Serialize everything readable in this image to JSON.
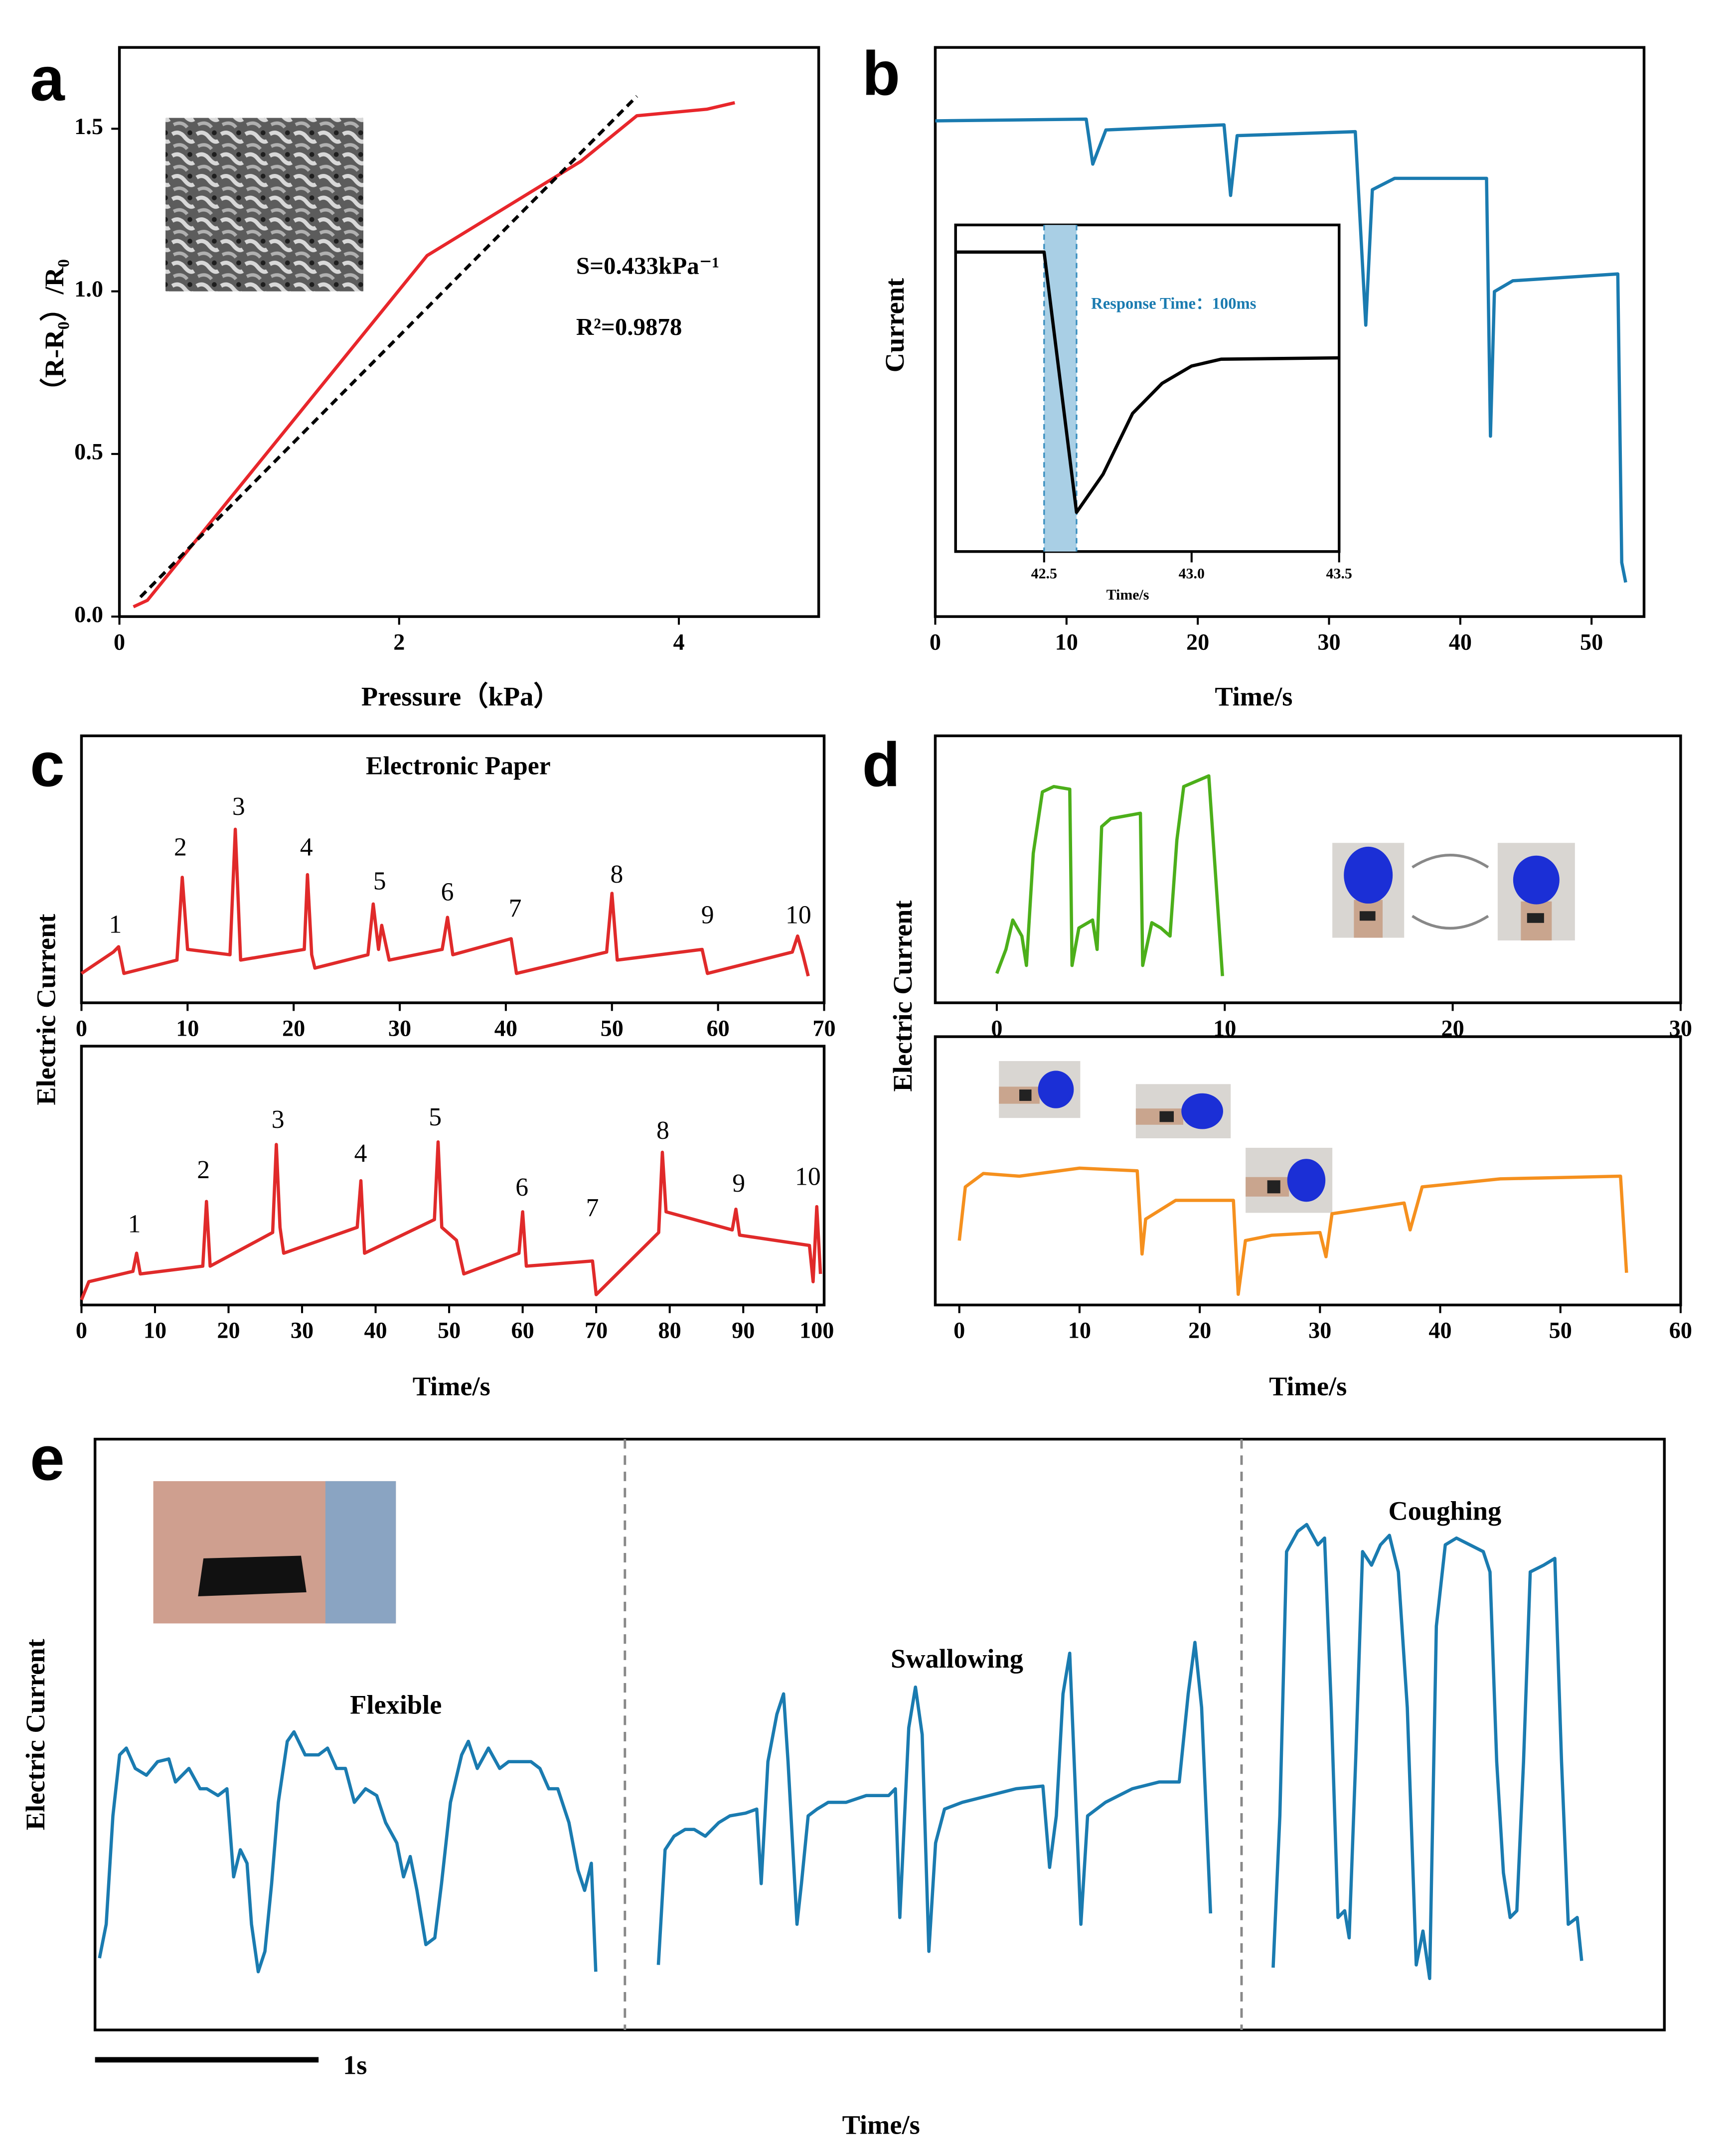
{
  "chart_data": [
    {
      "type": "line",
      "panel": "a",
      "xlabel": "Pressure（kPa）",
      "ylabel": "（R-R₀）/R₀",
      "xlim": [
        0,
        5
      ],
      "ylim": [
        0,
        1.75
      ],
      "xticks": [
        0,
        2,
        4
      ],
      "yticks": [
        {
          "value": 0,
          "label": "0.0"
        },
        0.5,
        {
          "value": 1,
          "label": "1.0"
        },
        1.5
      ],
      "series": [
        {
          "color": "#e8262b",
          "line_style": "solid",
          "x": [
            0.1,
            0.2,
            2.2,
            3.3,
            3.7,
            4.2,
            4.4
          ],
          "values": [
            0.03,
            0.05,
            1.11,
            1.4,
            1.54,
            1.56,
            1.58
          ]
        },
        {
          "color": "#000000",
          "line_style": "dashed",
          "x": [
            0.15,
            3.7
          ],
          "values": [
            0.06,
            1.6
          ]
        }
      ],
      "annotations": [
        "S=0.433kPa⁻¹",
        "R²=0.9878"
      ]
    },
    {
      "type": "line",
      "panel": "b",
      "xlabel": "Time/s",
      "ylabel": "Current",
      "xlim": [
        0,
        54
      ],
      "ylim": [
        0,
        1
      ],
      "xticks": [
        0,
        10,
        20,
        30,
        40,
        50
      ],
      "series": [
        {
          "color": "#1a7bb0",
          "line_style": "solid",
          "x": [
            0,
            11.5,
            12,
            13,
            22,
            22.5,
            23,
            32,
            32.8,
            33.3,
            35,
            42,
            42.3,
            42.6,
            44,
            52,
            52.3,
            52.6
          ],
          "values": [
            0.871,
            0.874,
            0.795,
            0.855,
            0.864,
            0.74,
            0.845,
            0.852,
            0.512,
            0.75,
            0.77,
            0.77,
            0.317,
            0.571,
            0.59,
            0.602,
            0.095,
            0.06
          ]
        }
      ]
    },
    {
      "type": "line",
      "xlabel": "Time/s",
      "xlim": [
        42.2,
        43.5
      ],
      "ylim": [
        0,
        1
      ],
      "xticks": [
        42.5,
        {
          "value": 43,
          "label": "43.0"
        },
        43.5
      ],
      "span": [
        42.5,
        42.61
      ],
      "series": [
        {
          "color": "#000000",
          "line_style": "solid",
          "x": [
            42.2,
            42.5,
            42.61,
            42.7,
            42.8,
            42.9,
            43.0,
            43.1,
            43.5
          ],
          "values": [
            0.917,
            0.917,
            0.12,
            0.237,
            0.423,
            0.515,
            0.568,
            0.589,
            0.593
          ]
        }
      ],
      "annotations": [
        "Response Time：100ms"
      ]
    },
    {
      "type": "line",
      "panel": "c",
      "title": "Electronic Paper",
      "ylabel": "Electric Current",
      "xlim": [
        0,
        70
      ],
      "ylim": [
        0,
        1
      ],
      "xticks": [
        0,
        10,
        20,
        30,
        40,
        50,
        60,
        70
      ],
      "series": [
        {
          "color": "#e02a2a",
          "line_style": "solid",
          "x": [
            0,
            3,
            3.5,
            4,
            9,
            9.5,
            10,
            14,
            14.5,
            15,
            21,
            21.3,
            21.7,
            22,
            27,
            27.5,
            28,
            28.3,
            29,
            34,
            34.5,
            35,
            40.5,
            41,
            49.5,
            50,
            50.5,
            58.5,
            59,
            67,
            67.5,
            68,
            68.5
          ],
          "values": [
            0.11,
            0.19,
            0.21,
            0.11,
            0.16,
            0.47,
            0.2,
            0.18,
            0.65,
            0.16,
            0.2,
            0.48,
            0.18,
            0.13,
            0.18,
            0.37,
            0.2,
            0.29,
            0.16,
            0.2,
            0.32,
            0.18,
            0.24,
            0.11,
            0.19,
            0.41,
            0.16,
            0.2,
            0.11,
            0.19,
            0.25,
            0.18,
            0.1
          ]
        }
      ],
      "annotations": [
        "1",
        "2",
        "3",
        "4",
        "5",
        "6",
        "7",
        "8",
        "9",
        "10"
      ]
    },
    {
      "type": "line",
      "xlabel": "Time/s",
      "xlim": [
        0,
        101
      ],
      "ylim": [
        0,
        1
      ],
      "xticks": [
        0,
        10,
        20,
        30,
        40,
        50,
        60,
        70,
        80,
        90,
        100
      ],
      "series": [
        {
          "color": "#e02a2a",
          "line_style": "solid",
          "x": [
            0,
            1,
            7,
            7.5,
            8,
            16.5,
            17,
            17.5,
            26,
            26.5,
            27,
            27.5,
            37.5,
            38,
            38.5,
            48,
            48.5,
            49,
            51,
            52,
            59.5,
            60,
            60.5,
            69.5,
            70,
            78.5,
            79,
            79.5,
            88.5,
            89,
            89.5,
            99,
            99.5,
            100,
            100.5
          ],
          "values": [
            0.02,
            0.09,
            0.13,
            0.2,
            0.12,
            0.15,
            0.4,
            0.15,
            0.28,
            0.62,
            0.3,
            0.2,
            0.3,
            0.48,
            0.2,
            0.33,
            0.63,
            0.3,
            0.25,
            0.12,
            0.2,
            0.36,
            0.15,
            0.17,
            0.04,
            0.28,
            0.59,
            0.36,
            0.29,
            0.37,
            0.27,
            0.23,
            0.09,
            0.38,
            0.12
          ]
        }
      ],
      "annotations": [
        "1",
        "2",
        "3",
        "4",
        "5",
        "6",
        "7",
        "8",
        "9",
        "10"
      ]
    },
    {
      "type": "line",
      "panel": "d",
      "ylabel": "Electric Current",
      "xlim": [
        -2.7,
        30
      ],
      "ylim": [
        0,
        1
      ],
      "xticks": [
        0,
        10,
        20,
        30
      ],
      "series": [
        {
          "color": "#4caf1a",
          "line_style": "solid",
          "x": [
            0,
            0.4,
            0.7,
            1.1,
            1.3,
            1.6,
            2,
            2.5,
            3.2,
            3.3,
            3.6,
            4.2,
            4.4,
            4.6,
            5,
            6.3,
            6.4,
            6.8,
            7.2,
            7.6,
            7.9,
            8.2,
            9.3,
            9.9
          ],
          "values": [
            0.11,
            0.2,
            0.31,
            0.25,
            0.14,
            0.56,
            0.79,
            0.81,
            0.8,
            0.14,
            0.28,
            0.31,
            0.2,
            0.66,
            0.69,
            0.71,
            0.14,
            0.3,
            0.28,
            0.25,
            0.61,
            0.81,
            0.85,
            0.1
          ]
        }
      ]
    },
    {
      "type": "line",
      "xlabel": "Time/s",
      "xlim": [
        -2,
        60
      ],
      "ylim": [
        0,
        1
      ],
      "xticks": [
        0,
        10,
        20,
        30,
        40,
        50,
        60
      ],
      "series": [
        {
          "color": "#f5901e",
          "line_style": "solid",
          "x": [
            0,
            0.5,
            2,
            5,
            10,
            14.8,
            15.2,
            15.5,
            18,
            22.8,
            23.2,
            23.8,
            26,
            30,
            30.5,
            31,
            37,
            37.5,
            38.5,
            45,
            55,
            55.5
          ],
          "values": [
            0.24,
            0.44,
            0.49,
            0.48,
            0.51,
            0.5,
            0.19,
            0.32,
            0.39,
            0.39,
            0.04,
            0.24,
            0.26,
            0.27,
            0.18,
            0.34,
            0.38,
            0.28,
            0.44,
            0.47,
            0.48,
            0.12
          ]
        }
      ]
    },
    {
      "type": "line",
      "panel": "e",
      "xlabel": "Time/s",
      "ylabel": "Electric Current",
      "xlim": [
        0,
        7.02
      ],
      "ylim": [
        0,
        436
      ],
      "scale_bar": {
        "value": 1,
        "label": "1s"
      },
      "series": [
        {
          "color": "#1a7bb0",
          "line_style": "solid",
          "x": [
            0.02,
            0.05,
            0.08,
            0.11,
            0.14,
            0.18,
            0.23,
            0.28,
            0.33,
            0.36,
            0.42,
            0.47,
            0.5,
            0.55,
            0.59,
            0.62,
            0.65,
            0.68,
            0.7,
            0.73,
            0.76,
            0.79,
            0.82,
            0.86,
            0.89,
            0.94,
            1.0,
            1.04,
            1.08,
            1.12,
            1.16,
            1.21,
            1.26,
            1.3,
            1.35,
            1.38,
            1.41,
            1.44,
            1.48,
            1.52,
            1.55,
            1.59,
            1.64,
            1.67,
            1.71,
            1.76,
            1.81,
            1.85,
            1.9,
            1.95,
            1.99,
            2.03,
            2.07,
            2.12,
            2.16,
            2.19,
            2.22,
            2.24
          ],
          "values": [
            53,
            78,
            158,
            203,
            208,
            193,
            188,
            198,
            200,
            183,
            193,
            178,
            178,
            173,
            178,
            113,
            133,
            123,
            78,
            43,
            58,
            108,
            168,
            213,
            220,
            203,
            203,
            208,
            193,
            193,
            168,
            178,
            173,
            153,
            138,
            113,
            128,
            103,
            63,
            68,
            108,
            168,
            203,
            213,
            193,
            208,
            193,
            198,
            198,
            198,
            193,
            178,
            178,
            153,
            118,
            103,
            123,
            43
          ]
        },
        {
          "color": "#1a7bb0",
          "line_style": "solid",
          "x": [
            2.52,
            2.55,
            2.59,
            2.64,
            2.68,
            2.73,
            2.79,
            2.84,
            2.91,
            2.96,
            2.98,
            3.01,
            3.05,
            3.08,
            3.1,
            3.14,
            3.16,
            3.19,
            3.23,
            3.28,
            3.36,
            3.45,
            3.55,
            3.58,
            3.6,
            3.64,
            3.67,
            3.7,
            3.73,
            3.76,
            3.8,
            3.88,
            4.0,
            4.12,
            4.24,
            4.27,
            4.3,
            4.33,
            4.36,
            4.41,
            4.44,
            4.52,
            4.64,
            4.76,
            4.85,
            4.89,
            4.92,
            4.95,
            4.99
          ],
          "values": [
            48,
            133,
            143,
            148,
            148,
            143,
            153,
            158,
            160,
            163,
            108,
            198,
            233,
            248,
            198,
            78,
            108,
            158,
            163,
            168,
            168,
            173,
            173,
            178,
            83,
            223,
            253,
            218,
            58,
            138,
            163,
            168,
            173,
            178,
            180,
            120,
            158,
            248,
            278,
            78,
            158,
            168,
            178,
            183,
            183,
            248,
            286,
            238,
            86
          ]
        },
        {
          "color": "#1a7bb0",
          "line_style": "solid",
          "x": [
            5.27,
            5.3,
            5.33,
            5.38,
            5.42,
            5.47,
            5.5,
            5.53,
            5.56,
            5.59,
            5.61,
            5.64,
            5.67,
            5.71,
            5.75,
            5.79,
            5.83,
            5.87,
            5.91,
            5.94,
            5.97,
            6.0,
            6.04,
            6.09,
            6.15,
            6.21,
            6.24,
            6.27,
            6.3,
            6.33,
            6.36,
            6.39,
            6.42,
            6.48,
            6.53,
            6.56,
            6.59,
            6.63,
            6.65
          ],
          "values": [
            46,
            158,
            353,
            368,
            373,
            358,
            363,
            238,
            83,
            88,
            68,
            203,
            353,
            343,
            358,
            365,
            338,
            238,
            48,
            73,
            38,
            298,
            358,
            363,
            358,
            353,
            338,
            198,
            116,
            83,
            88,
            198,
            338,
            343,
            348,
            198,
            78,
            83,
            51
          ]
        }
      ],
      "annotations": [
        "Flexible",
        "Swallowing",
        "Coughing"
      ]
    }
  ]
}
